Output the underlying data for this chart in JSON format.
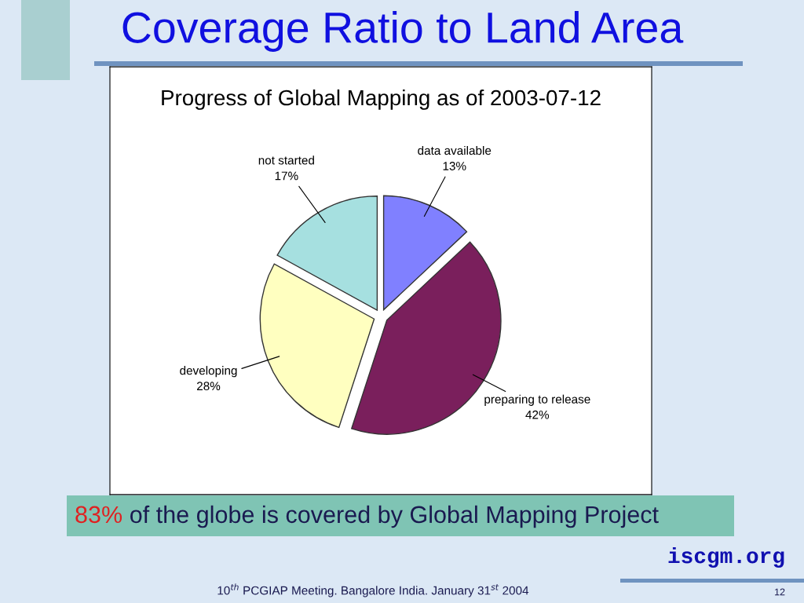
{
  "chart_data": {
    "type": "pie",
    "title": "Coverage Ratio to Land Area",
    "subtitle": "Progress of Global Mapping as of 2003-07-12",
    "categories": [
      "data available",
      "preparing to release",
      "developing",
      "not started"
    ],
    "values": [
      13,
      42,
      28,
      17
    ],
    "colors": [
      "#8080ff",
      "#7a1f5c",
      "#ffffc0",
      "#a6e0e0"
    ],
    "value_labels": [
      "13%",
      "42%",
      "28%",
      "17%"
    ],
    "annotations": [
      "83% of the globe is covered by Global Mapping Project",
      "iscgm.org",
      "10$^{th}$ PCGIAP Meeting. Bangalore India. January 31$^{st}$ 2004",
      "12"
    ]
  }
}
